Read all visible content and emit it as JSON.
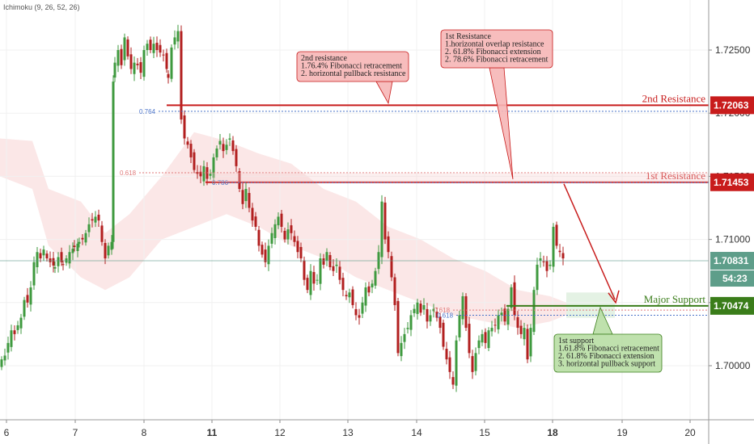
{
  "indicator_label": "Ichimoku (9, 26, 52, 26)",
  "colors": {
    "bull": "#3f9a3f",
    "bear": "#b21f1f",
    "resistance": "#c81c1c",
    "support": "#3a7d1a",
    "cloud": "#f7d3d3",
    "cloud_green": "#d8ecd8",
    "current": "#5b9a8a",
    "note_red_fill": "#f6b6b6",
    "note_green_fill": "#b8dea4",
    "fib_red": "#e07b7b",
    "fib_blue": "#4a73c9",
    "countdown_bg": "#5e9e8a"
  },
  "chart_data": {
    "type": "candlestick",
    "x_ticks": [
      "6",
      "7",
      "8",
      "11",
      "12",
      "13",
      "14",
      "15",
      "18",
      "19",
      "20"
    ],
    "y_ticks": [
      "1.72500",
      "1.72000",
      "1.71500",
      "1.71000",
      "1.70500",
      "1.70000"
    ],
    "ylim": [
      1.6968,
      1.7305
    ],
    "levels": [
      {
        "name": "2nd Resistance",
        "price": "1.72063",
        "value": 1.72063,
        "kind": "resistance"
      },
      {
        "name": "1st Resistance",
        "price": "1.71453",
        "value": 1.71453,
        "kind": "resistance"
      },
      {
        "name": "Major Support",
        "price": "1.70474",
        "value": 1.70474,
        "kind": "support"
      }
    ],
    "current_price": {
      "price": "1.70831",
      "value": 1.70831,
      "countdown": "54:23"
    },
    "fib_markers": [
      {
        "label": "0.764",
        "value": 1.72015,
        "color": "blue"
      },
      {
        "label": "0.618",
        "value": 1.71528,
        "color": "red"
      },
      {
        "label": "0.786",
        "value": 1.7145,
        "color": "blue"
      },
      {
        "label": "0.618",
        "value": 1.7044,
        "color": "red"
      },
      {
        "label": "0.618",
        "value": 1.704,
        "color": "blue"
      }
    ],
    "notes": [
      {
        "title": "2nd resistance",
        "lines": [
          "1.76.4% Fibonacci retracement",
          "2. horizontal pullback resistance"
        ],
        "color": "red"
      },
      {
        "title": "1st Resistance",
        "lines": [
          "1.horizontal overlap resistance",
          "2. 61.8% Fibonacci extension",
          "2. 78.6% Fibonacci retracement"
        ],
        "color": "red"
      },
      {
        "title": "1st support",
        "lines": [
          "1.61.8% Fibonacci retracement",
          "2. 61.8%  Fibonacci extension",
          "3. horizontal pullback support"
        ],
        "color": "green"
      }
    ],
    "anchors": [
      [
        0,
        1.7005
      ],
      [
        4,
        1.7008
      ],
      [
        8,
        1.7018
      ],
      [
        12,
        1.7028
      ],
      [
        16,
        1.7025
      ],
      [
        20,
        1.7032
      ],
      [
        24,
        1.7038
      ],
      [
        28,
        1.7052
      ],
      [
        32,
        1.705
      ],
      [
        36,
        1.7062
      ],
      [
        40,
        1.7082
      ],
      [
        44,
        1.709
      ],
      [
        48,
        1.7085
      ],
      [
        52,
        1.7092
      ],
      [
        56,
        1.7085
      ],
      [
        60,
        1.7082
      ],
      [
        66,
        1.7078
      ],
      [
        70,
        1.7086
      ],
      [
        76,
        1.708
      ],
      [
        80,
        1.7085
      ],
      [
        84,
        1.709
      ],
      [
        90,
        1.7094
      ],
      [
        96,
        1.7098
      ],
      [
        100,
        1.71
      ],
      [
        104,
        1.7105
      ],
      [
        108,
        1.7112
      ],
      [
        112,
        1.7115
      ],
      [
        116,
        1.7118
      ],
      [
        120,
        1.7115
      ],
      [
        124,
        1.7098
      ],
      [
        128,
        1.7085
      ],
      [
        132,
        1.7095
      ],
      [
        136,
        1.7098
      ],
      [
        138,
        1.7225
      ],
      [
        140,
        1.724
      ],
      [
        144,
        1.725
      ],
      [
        148,
        1.7238
      ],
      [
        152,
        1.726
      ],
      [
        156,
        1.7245
      ],
      [
        160,
        1.7235
      ],
      [
        164,
        1.724
      ],
      [
        168,
        1.7238
      ],
      [
        172,
        1.7232
      ],
      [
        176,
        1.725
      ],
      [
        180,
        1.7255
      ],
      [
        184,
        1.725
      ],
      [
        188,
        1.7255
      ],
      [
        192,
        1.725
      ],
      [
        196,
        1.7248
      ],
      [
        200,
        1.7246
      ],
      [
        204,
        1.7235
      ],
      [
        206,
        1.7228
      ],
      [
        210,
        1.7252
      ],
      [
        214,
        1.726
      ],
      [
        218,
        1.7265
      ],
      [
        222,
        1.7195
      ],
      [
        226,
        1.718
      ],
      [
        230,
        1.7175
      ],
      [
        234,
        1.7165
      ],
      [
        238,
        1.7155
      ],
      [
        242,
        1.7152
      ],
      [
        246,
        1.715
      ],
      [
        250,
        1.7158
      ],
      [
        254,
        1.7148
      ],
      [
        258,
        1.7152
      ],
      [
        262,
        1.7165
      ],
      [
        266,
        1.7172
      ],
      [
        270,
        1.7178
      ],
      [
        274,
        1.717
      ],
      [
        278,
        1.7175
      ],
      [
        282,
        1.718
      ],
      [
        286,
        1.717
      ],
      [
        290,
        1.7158
      ],
      [
        294,
        1.714
      ],
      [
        298,
        1.7128
      ],
      [
        302,
        1.714
      ],
      [
        306,
        1.7125
      ],
      [
        310,
        1.7115
      ],
      [
        314,
        1.711
      ],
      [
        318,
        1.7095
      ],
      [
        322,
        1.7088
      ],
      [
        326,
        1.7082
      ],
      [
        330,
        1.7095
      ],
      [
        334,
        1.7105
      ],
      [
        338,
        1.7112
      ],
      [
        342,
        1.7118
      ],
      [
        346,
        1.711
      ],
      [
        350,
        1.71
      ],
      [
        354,
        1.7108
      ],
      [
        358,
        1.7105
      ],
      [
        362,
        1.7098
      ],
      [
        366,
        1.709
      ],
      [
        370,
        1.7085
      ],
      [
        374,
        1.7068
      ],
      [
        378,
        1.706
      ],
      [
        382,
        1.7075
      ],
      [
        386,
        1.7065
      ],
      [
        390,
        1.7068
      ],
      [
        394,
        1.7085
      ],
      [
        398,
        1.708
      ],
      [
        402,
        1.709
      ],
      [
        406,
        1.7078
      ],
      [
        410,
        1.7075
      ],
      [
        414,
        1.708
      ],
      [
        418,
        1.7068
      ],
      [
        422,
        1.706
      ],
      [
        426,
        1.7055
      ],
      [
        430,
        1.7058
      ],
      [
        434,
        1.7048
      ],
      [
        438,
        1.704
      ],
      [
        442,
        1.7038
      ],
      [
        446,
        1.705
      ],
      [
        450,
        1.7062
      ],
      [
        454,
        1.7058
      ],
      [
        458,
        1.7065
      ],
      [
        462,
        1.7075
      ],
      [
        466,
        1.709
      ],
      [
        470,
        1.713
      ],
      [
        474,
        1.71
      ],
      [
        478,
        1.709
      ],
      [
        482,
        1.707
      ],
      [
        486,
        1.7048
      ],
      [
        490,
        1.701
      ],
      [
        494,
        1.7018
      ],
      [
        498,
        1.7025
      ],
      [
        502,
        1.703
      ],
      [
        506,
        1.704
      ],
      [
        510,
        1.7045
      ],
      [
        514,
        1.705
      ],
      [
        518,
        1.7042
      ],
      [
        522,
        1.7048
      ],
      [
        526,
        1.7035
      ],
      [
        530,
        1.704
      ],
      [
        534,
        1.7045
      ],
      [
        538,
        1.7038
      ],
      [
        542,
        1.703
      ],
      [
        546,
        1.7015
      ],
      [
        550,
        1.7005
      ],
      [
        554,
        1.6995
      ],
      [
        558,
        1.6985
      ],
      [
        562,
        1.702
      ],
      [
        566,
        1.704
      ],
      [
        570,
        1.7055
      ],
      [
        574,
        1.703
      ],
      [
        578,
        1.701
      ],
      [
        582,
        1.6995
      ],
      [
        586,
        1.701
      ],
      [
        590,
        1.702
      ],
      [
        594,
        1.7025
      ],
      [
        598,
        1.7018
      ],
      [
        602,
        1.7028
      ],
      [
        606,
        1.703
      ],
      [
        610,
        1.7032
      ],
      [
        614,
        1.704
      ],
      [
        618,
        1.7042
      ],
      [
        622,
        1.7035
      ],
      [
        626,
        1.7045
      ],
      [
        630,
        1.7062
      ],
      [
        634,
        1.704
      ],
      [
        638,
        1.703
      ],
      [
        642,
        1.7025
      ],
      [
        646,
        1.703
      ],
      [
        650,
        1.7005
      ],
      [
        654,
        1.703
      ],
      [
        658,
        1.706
      ],
      [
        662,
        1.708
      ],
      [
        666,
        1.7085
      ],
      [
        670,
        1.7082
      ],
      [
        674,
        1.7075
      ],
      [
        678,
        1.708
      ],
      [
        682,
        1.711
      ],
      [
        686,
        1.7095
      ],
      [
        690,
        1.709
      ],
      [
        694,
        1.7085
      ]
    ]
  },
  "axis_label_rows": []
}
